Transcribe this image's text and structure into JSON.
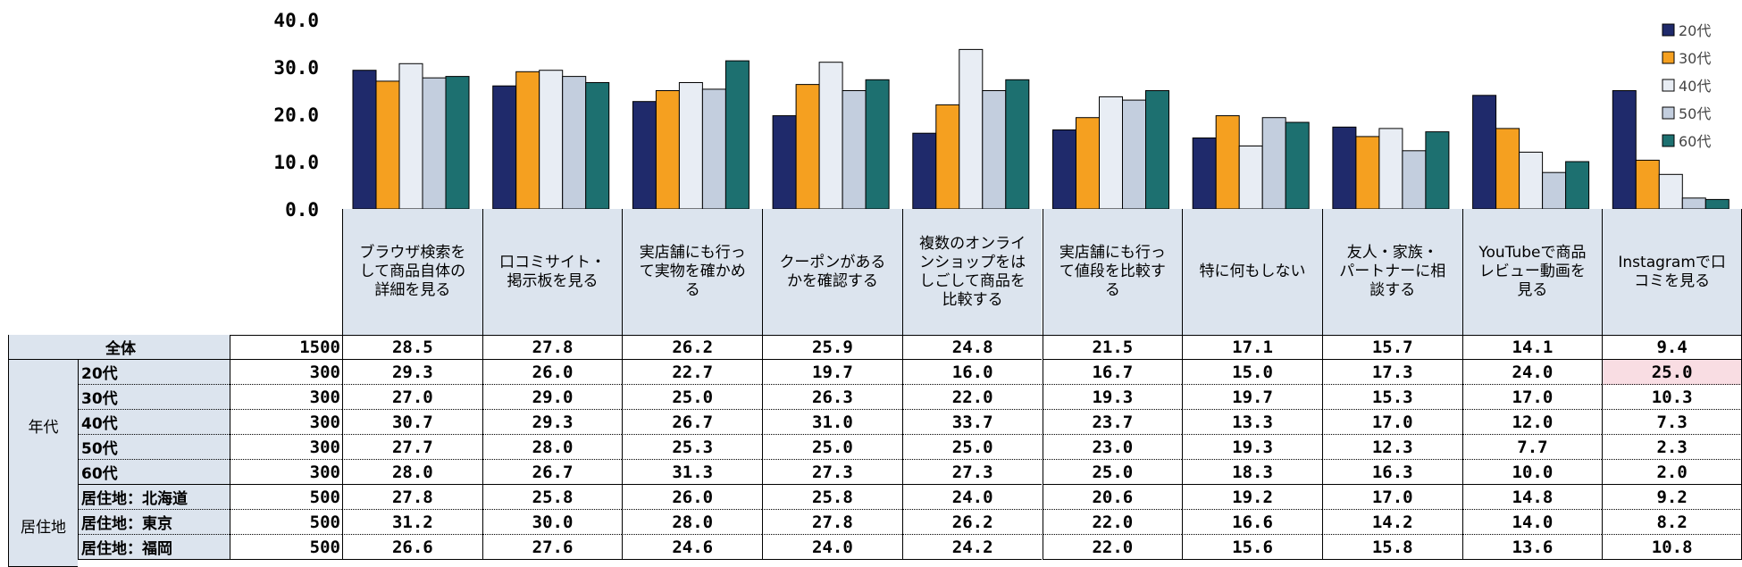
{
  "chart_data": {
    "type": "bar",
    "title": "",
    "ylim": [
      0,
      40
    ],
    "yticks": [
      "40.0",
      "30.0",
      "20.0",
      "10.0",
      "0.0"
    ],
    "categories": [
      "ブラウザ検索をして商品自体の詳細を見る",
      "口コミサイト・掲示板を見る",
      "実店舗にも行って実物を確かめる",
      "クーポンがあるかを確認する",
      "複数のオンラインショップをはしごして商品を比較する",
      "実店舗にも行って値段を比較する",
      "特に何もしない",
      "友人・家族・パートナーに相談する",
      "YouTubeで商品レビュー動画を見る",
      "Instagramで口コミを見る"
    ],
    "category_lines": [
      [
        "ブラウザ検索を",
        "して商品自体の",
        "詳細を見る"
      ],
      [
        "口コミサイト・",
        "掲示板を見る"
      ],
      [
        "実店舗にも行っ",
        "て実物を確かめ",
        "る"
      ],
      [
        "クーポンがある",
        "かを確認する"
      ],
      [
        "複数のオンライ",
        "ンショップをは",
        "しごして商品を",
        "比較する"
      ],
      [
        "実店舗にも行っ",
        "て値段を比較す",
        "る"
      ],
      [
        "特に何もしない"
      ],
      [
        "友人・家族・",
        "パートナーに相",
        "談する"
      ],
      [
        "YouTubeで商品",
        "レビュー動画を",
        "見る"
      ],
      [
        "Instagramで口",
        "コミを見る"
      ]
    ],
    "series": [
      {
        "name": "20代",
        "color": "#1f2a6b",
        "values": [
          29.3,
          26.0,
          22.7,
          19.7,
          16.0,
          16.7,
          15.0,
          17.3,
          24.0,
          25.0
        ]
      },
      {
        "name": "30代",
        "color": "#f5a020",
        "values": [
          27.0,
          29.0,
          25.0,
          26.3,
          22.0,
          19.3,
          19.7,
          15.3,
          17.0,
          10.3
        ]
      },
      {
        "name": "40代",
        "color": "#e8edf4",
        "values": [
          30.7,
          29.3,
          26.7,
          31.0,
          33.7,
          23.7,
          13.3,
          17.0,
          12.0,
          7.3
        ]
      },
      {
        "name": "50代",
        "color": "#c3cede",
        "values": [
          27.7,
          28.0,
          25.3,
          25.0,
          25.0,
          23.0,
          19.3,
          12.3,
          7.7,
          2.3
        ]
      },
      {
        "name": "60代",
        "color": "#1d7070",
        "values": [
          28.0,
          26.7,
          31.3,
          27.3,
          27.3,
          25.0,
          18.3,
          16.3,
          10.0,
          2.0
        ]
      }
    ],
    "legend_position": "top-right"
  },
  "table": {
    "rows": [
      {
        "group": "",
        "label": "全体",
        "n": "1500",
        "values": [
          "28.5",
          "27.8",
          "26.2",
          "25.9",
          "24.8",
          "21.5",
          "17.1",
          "15.7",
          "14.1",
          "9.4"
        ]
      },
      {
        "group": "年代",
        "label": "20代",
        "n": "300",
        "values": [
          "29.3",
          "26.0",
          "22.7",
          "19.7",
          "16.0",
          "16.7",
          "15.0",
          "17.3",
          "24.0",
          "25.0"
        ]
      },
      {
        "group": "年代",
        "label": "30代",
        "n": "300",
        "values": [
          "27.0",
          "29.0",
          "25.0",
          "26.3",
          "22.0",
          "19.3",
          "19.7",
          "15.3",
          "17.0",
          "10.3"
        ]
      },
      {
        "group": "年代",
        "label": "40代",
        "n": "300",
        "values": [
          "30.7",
          "29.3",
          "26.7",
          "31.0",
          "33.7",
          "23.7",
          "13.3",
          "17.0",
          "12.0",
          "7.3"
        ]
      },
      {
        "group": "年代",
        "label": "50代",
        "n": "300",
        "values": [
          "27.7",
          "28.0",
          "25.3",
          "25.0",
          "25.0",
          "23.0",
          "19.3",
          "12.3",
          "7.7",
          "2.3"
        ]
      },
      {
        "group": "年代",
        "label": "60代",
        "n": "300",
        "values": [
          "28.0",
          "26.7",
          "31.3",
          "27.3",
          "27.3",
          "25.0",
          "18.3",
          "16.3",
          "10.0",
          "2.0"
        ]
      },
      {
        "group": "居住地",
        "label": "居住地：北海道",
        "n": "500",
        "values": [
          "27.8",
          "25.8",
          "26.0",
          "25.8",
          "24.0",
          "20.6",
          "19.2",
          "17.0",
          "14.8",
          "9.2"
        ]
      },
      {
        "group": "居住地",
        "label": "居住地：東京",
        "n": "500",
        "values": [
          "31.2",
          "30.0",
          "28.0",
          "27.8",
          "26.2",
          "22.0",
          "16.6",
          "14.2",
          "14.0",
          "8.2"
        ]
      },
      {
        "group": "居住地",
        "label": "居住地：福岡",
        "n": "500",
        "values": [
          "26.6",
          "27.6",
          "24.6",
          "24.0",
          "24.2",
          "22.0",
          "15.6",
          "15.8",
          "13.6",
          "10.8"
        ]
      }
    ],
    "groups": [
      "年代",
      "居住地"
    ],
    "highlight": {
      "row": 1,
      "col": 9,
      "color": "#f9dde3"
    }
  }
}
